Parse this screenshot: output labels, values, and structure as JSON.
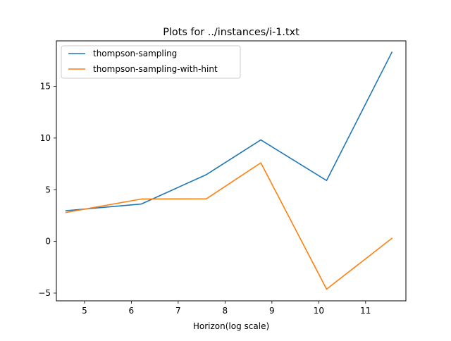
{
  "chart_data": {
    "type": "line",
    "title": "Plots for ../instances/i-1.txt",
    "xlabel": "Horizon(log scale)",
    "ylabel": "",
    "xlim": [
      4.4,
      11.86
    ],
    "ylim": [
      -5.75,
      19.4
    ],
    "xticks": [
      5,
      6,
      7,
      8,
      9,
      10,
      11
    ],
    "yticks": [
      -5,
      0,
      5,
      10,
      15
    ],
    "grid": false,
    "legend_position": "upper-left",
    "x": [
      4.605,
      6.215,
      7.601,
      8.764,
      10.167,
      11.561
    ],
    "series": [
      {
        "name": "thompson-sampling",
        "color": "#1f77b4",
        "values": [
          2.97,
          3.62,
          6.46,
          9.82,
          5.89,
          18.3
        ]
      },
      {
        "name": "thompson-sampling-with-hint",
        "color": "#ff7f0e",
        "values": [
          2.8,
          4.1,
          4.12,
          7.6,
          -4.62,
          0.3
        ]
      }
    ]
  }
}
